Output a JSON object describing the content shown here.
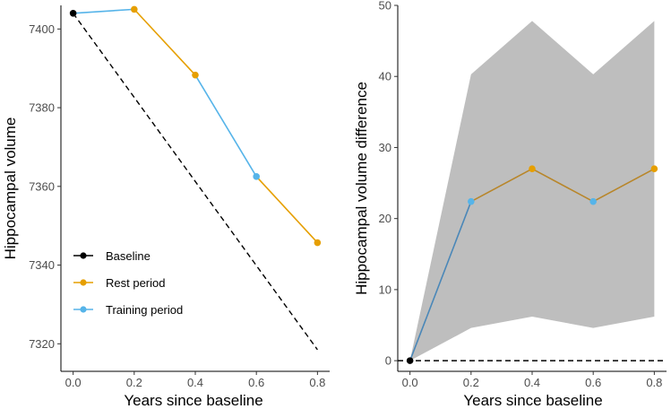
{
  "colors": {
    "baseline": "#000000",
    "rest": "#E69F00",
    "training": "#56B4E9",
    "left_training_line": "#56B4E9",
    "right_training_line": "#4a87b8",
    "right_rest_line": "#b8862a",
    "ribbon": "#bebebe"
  },
  "chart_data": [
    {
      "type": "line",
      "xlabel": "Years since baseline",
      "ylabel": "Hippocampal volume",
      "xlim": [
        -0.04,
        0.84
      ],
      "ylim": [
        7313,
        7406
      ],
      "x_ticks": [
        0.0,
        0.2,
        0.4,
        0.6,
        0.8
      ],
      "x_tick_labels": [
        "0.0",
        "0.2",
        "0.4",
        "0.6",
        "0.8"
      ],
      "y_ticks": [
        7320,
        7340,
        7360,
        7380,
        7400
      ],
      "y_tick_labels": [
        "7320",
        "7340",
        "7360",
        "7380",
        "7400"
      ],
      "points": [
        {
          "x": 0.0,
          "y": 7404,
          "group": "baseline"
        },
        {
          "x": 0.2,
          "y": 7405,
          "group": "rest"
        },
        {
          "x": 0.4,
          "y": 7388.3,
          "group": "rest"
        },
        {
          "x": 0.6,
          "y": 7362.5,
          "group": "training"
        },
        {
          "x": 0.8,
          "y": 7345.7,
          "group": "rest"
        }
      ],
      "segments": [
        {
          "from": 0,
          "to": 1,
          "group": "training"
        },
        {
          "from": 1,
          "to": 2,
          "group": "rest"
        },
        {
          "from": 2,
          "to": 3,
          "group": "training"
        },
        {
          "from": 3,
          "to": 4,
          "group": "rest"
        }
      ],
      "reference_line": {
        "x": [
          0.0,
          0.8
        ],
        "y": [
          7404,
          7318.5
        ],
        "style": "dashed"
      },
      "legend": {
        "placement": "bottom-left",
        "entries": [
          {
            "label": "Baseline",
            "group": "baseline"
          },
          {
            "label": "Rest period",
            "group": "rest"
          },
          {
            "label": "Training period",
            "group": "training"
          }
        ]
      }
    },
    {
      "type": "line",
      "xlabel": "Years since baseline",
      "ylabel": "Hippocampal volume difference",
      "xlim": [
        -0.04,
        0.84
      ],
      "ylim": [
        -1.5,
        50
      ],
      "x_ticks": [
        0.0,
        0.2,
        0.4,
        0.6,
        0.8
      ],
      "x_tick_labels": [
        "0.0",
        "0.2",
        "0.4",
        "0.6",
        "0.8"
      ],
      "y_ticks": [
        0,
        10,
        20,
        30,
        40,
        50
      ],
      "y_tick_labels": [
        "0",
        "10",
        "20",
        "30",
        "40",
        "50"
      ],
      "points": [
        {
          "x": 0.0,
          "y": 0,
          "group": "baseline"
        },
        {
          "x": 0.2,
          "y": 22.4,
          "group": "training"
        },
        {
          "x": 0.4,
          "y": 27.0,
          "group": "rest"
        },
        {
          "x": 0.6,
          "y": 22.4,
          "group": "training"
        },
        {
          "x": 0.8,
          "y": 27.0,
          "group": "rest"
        }
      ],
      "segments": [
        {
          "from": 0,
          "to": 1,
          "group": "training"
        },
        {
          "from": 1,
          "to": 2,
          "group": "rest"
        },
        {
          "from": 2,
          "to": 3,
          "group": "rest"
        },
        {
          "from": 3,
          "to": 4,
          "group": "rest"
        }
      ],
      "ribbon": {
        "x": [
          0.0,
          0.2,
          0.4,
          0.6,
          0.8
        ],
        "upper": [
          0,
          40.3,
          47.8,
          40.3,
          47.8
        ],
        "lower": [
          0,
          4.6,
          6.2,
          4.6,
          6.2
        ]
      },
      "reference_line": {
        "x": [
          -0.04,
          0.84
        ],
        "y": [
          0,
          0
        ],
        "style": "dashed"
      }
    }
  ]
}
